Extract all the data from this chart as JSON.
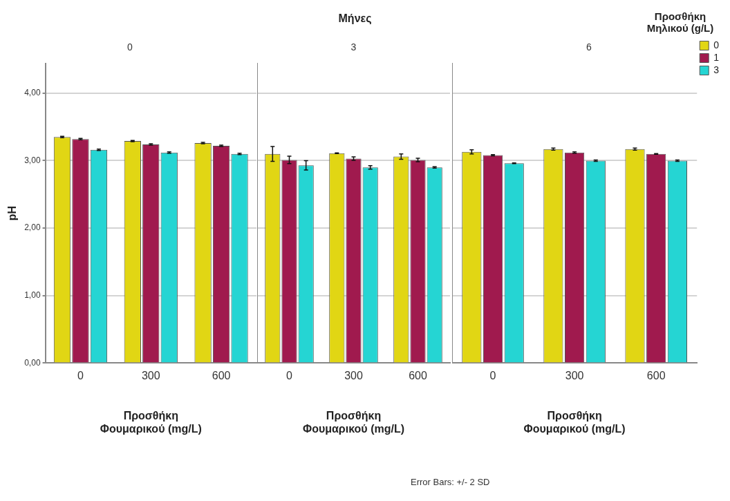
{
  "chart_data": [
    {
      "type": "bar",
      "title": "0",
      "xlabel": "Προσθήκη Φουμαρικού (mg/L)",
      "ylabel": "pH",
      "categories": [
        "0",
        "300",
        "600"
      ],
      "series": [
        {
          "color": "#e1d614",
          "values": [
            3.35,
            3.29,
            3.26
          ],
          "errors": [
            0.01,
            0.01,
            0.01
          ]
        },
        {
          "color": "#a01a4e",
          "values": [
            3.32,
            3.24,
            3.22
          ],
          "errors": [
            0.01,
            0.01,
            0.01
          ]
        },
        {
          "color": "#25d5d3",
          "values": [
            3.16,
            3.12,
            3.1
          ],
          "errors": [
            0.01,
            0.01,
            0.01
          ]
        }
      ],
      "ylim": [
        0,
        4.44
      ],
      "yticks": [
        {
          "value": 0,
          "label": "0,00"
        },
        {
          "value": 1,
          "label": "1,00"
        },
        {
          "value": 2,
          "label": "2,00"
        },
        {
          "value": 3,
          "label": "3,00"
        },
        {
          "value": 4,
          "label": "4,00"
        }
      ],
      "grid": "y",
      "legend": false
    },
    {
      "type": "bar",
      "title": "3",
      "xlabel": "Προσθήκη Φουμαρικού (mg/L)",
      "annotations": [
        "Μήνες"
      ],
      "categories": [
        "0",
        "300",
        "600"
      ],
      "series": [
        {
          "color": "#e1d614",
          "values": [
            3.1,
            3.11,
            3.06
          ],
          "errors": [
            0.11,
            0.005,
            0.04
          ]
        },
        {
          "color": "#a01a4e",
          "values": [
            3.01,
            3.03,
            3.01
          ],
          "errors": [
            0.055,
            0.025,
            0.025
          ]
        },
        {
          "color": "#25d5d3",
          "values": [
            2.93,
            2.9,
            2.9
          ],
          "errors": [
            0.07,
            0.025,
            0.01
          ]
        }
      ],
      "ylim": [
        0,
        4.44
      ],
      "yticks": [
        0,
        1,
        2,
        3,
        4
      ],
      "grid": "y",
      "legend": false,
      "tick_labels": "x"
    },
    {
      "type": "bar",
      "title": "6",
      "xlabel": "Προσθήκη Φουμαρικού (mg/L)",
      "annotations": [
        "Error Bars: +/- 2 SD"
      ],
      "legend_title": "Προσθήκη Μηλικού (g/L)",
      "categories": [
        "0",
        "300",
        "600"
      ],
      "series": [
        {
          "name": "0",
          "color": "#e1d614",
          "values": [
            3.13,
            3.17,
            3.17
          ],
          "errors": [
            0.03,
            0.015,
            0.015
          ]
        },
        {
          "name": "1",
          "color": "#a01a4e",
          "values": [
            3.08,
            3.12,
            3.1
          ],
          "errors": [
            0.01,
            0.01,
            0.005
          ]
        },
        {
          "name": "3",
          "color": "#25d5d3",
          "values": [
            2.96,
            3.0,
            3.0
          ],
          "errors": [
            0.005,
            0.01,
            0.01
          ]
        }
      ],
      "ylim": [
        0,
        4.44
      ],
      "yticks": [
        0,
        1,
        2,
        3,
        4
      ],
      "grid": "y",
      "legend": "right",
      "tick_labels": "x"
    }
  ]
}
